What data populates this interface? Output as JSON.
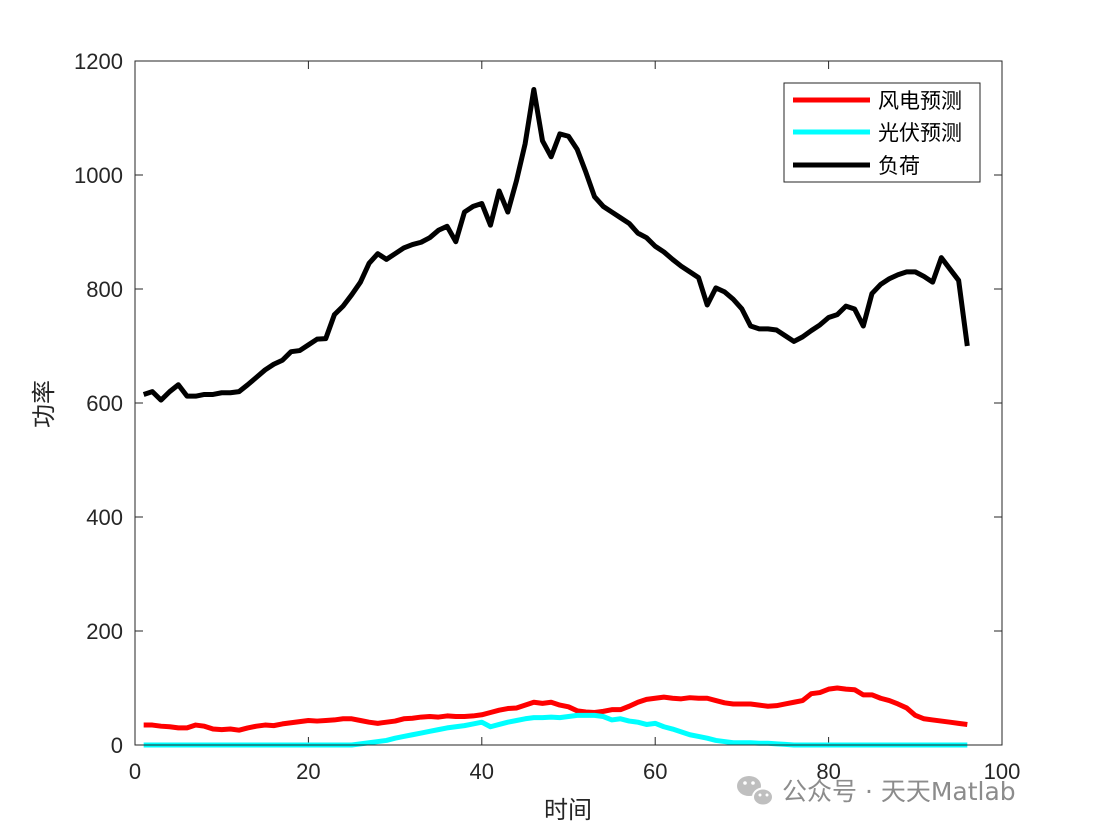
{
  "chart_data": {
    "type": "line",
    "xlabel": "时间",
    "ylabel": "功率",
    "xlim": [
      0,
      100
    ],
    "ylim": [
      0,
      1200
    ],
    "xticks": [
      0,
      20,
      40,
      60,
      80,
      100
    ],
    "yticks": [
      0,
      200,
      400,
      600,
      800,
      1000,
      1200
    ],
    "grid": false,
    "legend_position": "top-right",
    "x": [
      1,
      2,
      3,
      4,
      5,
      6,
      7,
      8,
      9,
      10,
      11,
      12,
      13,
      14,
      15,
      16,
      17,
      18,
      19,
      20,
      21,
      22,
      23,
      24,
      25,
      26,
      27,
      28,
      29,
      30,
      31,
      32,
      33,
      34,
      35,
      36,
      37,
      38,
      39,
      40,
      41,
      42,
      43,
      44,
      45,
      46,
      47,
      48,
      49,
      50,
      51,
      52,
      53,
      54,
      55,
      56,
      57,
      58,
      59,
      60,
      61,
      62,
      63,
      64,
      65,
      66,
      67,
      68,
      69,
      70,
      71,
      72,
      73,
      74,
      75,
      76,
      77,
      78,
      79,
      80,
      81,
      82,
      83,
      84,
      85,
      86,
      87,
      88,
      89,
      90,
      91,
      92,
      93,
      94,
      95,
      96
    ],
    "series": [
      {
        "name": "风电预测",
        "color": "#ff0000",
        "values": [
          35,
          35,
          33,
          32,
          30,
          30,
          35,
          33,
          28,
          27,
          28,
          26,
          30,
          33,
          35,
          34,
          37,
          39,
          41,
          43,
          42,
          43,
          44,
          46,
          46,
          43,
          40,
          38,
          40,
          42,
          46,
          47,
          49,
          50,
          49,
          51,
          50,
          50,
          51,
          53,
          57,
          61,
          64,
          65,
          70,
          75,
          73,
          75,
          70,
          67,
          60,
          58,
          57,
          59,
          62,
          62,
          68,
          75,
          80,
          82,
          84,
          82,
          81,
          83,
          82,
          82,
          78,
          74,
          72,
          72,
          72,
          70,
          68,
          69,
          72,
          75,
          78,
          90,
          92,
          98,
          100,
          98,
          97,
          88,
          88,
          82,
          78,
          72,
          65,
          52,
          46,
          44,
          42,
          40,
          38,
          36
        ]
      },
      {
        "name": "光伏预测",
        "color": "#00ffff",
        "values": [
          0,
          0,
          0,
          0,
          0,
          0,
          0,
          0,
          0,
          0,
          0,
          0,
          0,
          0,
          0,
          0,
          0,
          0,
          0,
          0,
          0,
          0,
          0,
          0,
          0,
          2,
          4,
          6,
          8,
          12,
          15,
          18,
          21,
          24,
          27,
          30,
          32,
          34,
          37,
          40,
          32,
          36,
          40,
          43,
          46,
          48,
          48,
          49,
          48,
          50,
          52,
          52,
          52,
          50,
          44,
          46,
          42,
          40,
          36,
          38,
          32,
          28,
          23,
          18,
          15,
          12,
          8,
          6,
          4,
          4,
          4,
          3,
          3,
          2,
          1,
          0,
          0,
          0,
          0,
          0,
          0,
          0,
          0,
          0,
          0,
          0,
          0,
          0,
          0,
          0,
          0,
          0,
          0,
          0,
          0,
          0
        ]
      },
      {
        "name": "负荷",
        "color": "#000000",
        "values": [
          615,
          620,
          605,
          620,
          632,
          612,
          612,
          615,
          615,
          618,
          618,
          620,
          632,
          645,
          658,
          668,
          675,
          690,
          692,
          702,
          712,
          713,
          755,
          770,
          790,
          812,
          845,
          862,
          852,
          862,
          872,
          878,
          882,
          890,
          903,
          910,
          883,
          935,
          945,
          950,
          912,
          972,
          935,
          990,
          1055,
          1150,
          1060,
          1032,
          1072,
          1068,
          1045,
          1005,
          962,
          945,
          935,
          925,
          915,
          898,
          890,
          875,
          865,
          852,
          840,
          830,
          820,
          772,
          802,
          795,
          782,
          765,
          735,
          730,
          730,
          728,
          718,
          708,
          716,
          727,
          737,
          750,
          755,
          770,
          765,
          735,
          792,
          808,
          818,
          825,
          830,
          830,
          822,
          812,
          855,
          835,
          815,
          700
        ]
      }
    ]
  },
  "watermark": {
    "icon": "wechat-icon",
    "text": "公众号 · 天天Matlab"
  }
}
